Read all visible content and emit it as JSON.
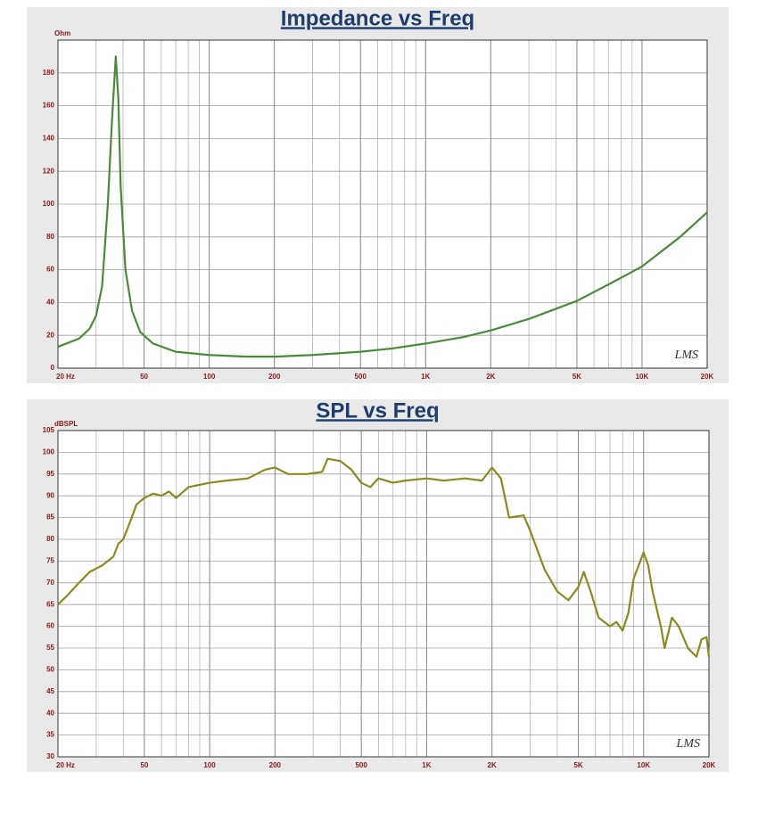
{
  "chart_data": [
    {
      "type": "line",
      "title": "Impedance vs Freq",
      "y_label": "Ohm",
      "logo": "LMS",
      "x_log": true,
      "minor_grid": true,
      "grid": true,
      "xlim": [
        20,
        20000
      ],
      "xticks": [
        {
          "value": 20,
          "label": "20 Hz"
        },
        50,
        100,
        200,
        500,
        {
          "value": 1000,
          "label": "1K"
        },
        {
          "value": 2000,
          "label": "2K"
        },
        {
          "value": 5000,
          "label": "5K"
        },
        {
          "value": 10000,
          "label": "10K"
        },
        {
          "value": 20000,
          "label": "20K"
        }
      ],
      "ylim": [
        0,
        200
      ],
      "yticks": [
        0,
        20,
        40,
        60,
        80,
        100,
        120,
        140,
        160,
        180
      ],
      "color": "#4a8a3a",
      "x": [
        20,
        25,
        28,
        30,
        32,
        34,
        35.5,
        37,
        38,
        39,
        41,
        44,
        48,
        55,
        70,
        100,
        150,
        200,
        300,
        500,
        700,
        1000,
        1500,
        2000,
        3000,
        5000,
        7000,
        10000,
        15000,
        20000
      ],
      "values": [
        13,
        18,
        24,
        32,
        50,
        100,
        150,
        190,
        165,
        110,
        60,
        35,
        22,
        15,
        10,
        8,
        7,
        7,
        8,
        10,
        12,
        15,
        19,
        23,
        30,
        41,
        51,
        62,
        80,
        95
      ]
    },
    {
      "type": "line",
      "title": "SPL vs Freq",
      "y_label": "dBSPL",
      "logo": "LMS",
      "x_log": true,
      "minor_grid": true,
      "grid": true,
      "xlim": [
        20,
        20000
      ],
      "xticks": [
        {
          "value": 20,
          "label": "20 Hz"
        },
        50,
        100,
        200,
        500,
        {
          "value": 1000,
          "label": "1K"
        },
        {
          "value": 2000,
          "label": "2K"
        },
        {
          "value": 5000,
          "label": "5K"
        },
        {
          "value": 10000,
          "label": "10K"
        },
        {
          "value": 20000,
          "label": "20K"
        }
      ],
      "ylim": [
        30,
        105
      ],
      "yticks": [
        30,
        35,
        40,
        45,
        50,
        55,
        60,
        65,
        70,
        75,
        80,
        85,
        90,
        95,
        100,
        105
      ],
      "color": "#8a8a20",
      "x": [
        20,
        22,
        25,
        28,
        32,
        36,
        38,
        40,
        43,
        46,
        50,
        55,
        60,
        65,
        70,
        80,
        100,
        120,
        150,
        180,
        200,
        230,
        280,
        330,
        350,
        400,
        450,
        500,
        550,
        600,
        700,
        800,
        1000,
        1200,
        1500,
        1800,
        2000,
        2200,
        2400,
        2800,
        3000,
        3500,
        4000,
        4500,
        5000,
        5300,
        5700,
        6200,
        7000,
        7500,
        8000,
        8500,
        9000,
        10000,
        10500,
        11000,
        12000,
        12500,
        13500,
        14500,
        16000,
        17500,
        18500,
        19500,
        20000
      ],
      "values": [
        65,
        67,
        70,
        72.5,
        74,
        76,
        79,
        80,
        84,
        88,
        89.5,
        90.5,
        90,
        91,
        89.5,
        92,
        93,
        93.5,
        94,
        96,
        96.5,
        95,
        95,
        95.5,
        98.5,
        98,
        96,
        93,
        92,
        94,
        93,
        93.5,
        94,
        93.5,
        94,
        93.5,
        96.5,
        94,
        85,
        85.5,
        82,
        73,
        68,
        66,
        69,
        72.5,
        68,
        62,
        60,
        61,
        59,
        63,
        71,
        77,
        74,
        68,
        60,
        55,
        62,
        60,
        55,
        53,
        57,
        57.5,
        53
      ]
    }
  ]
}
